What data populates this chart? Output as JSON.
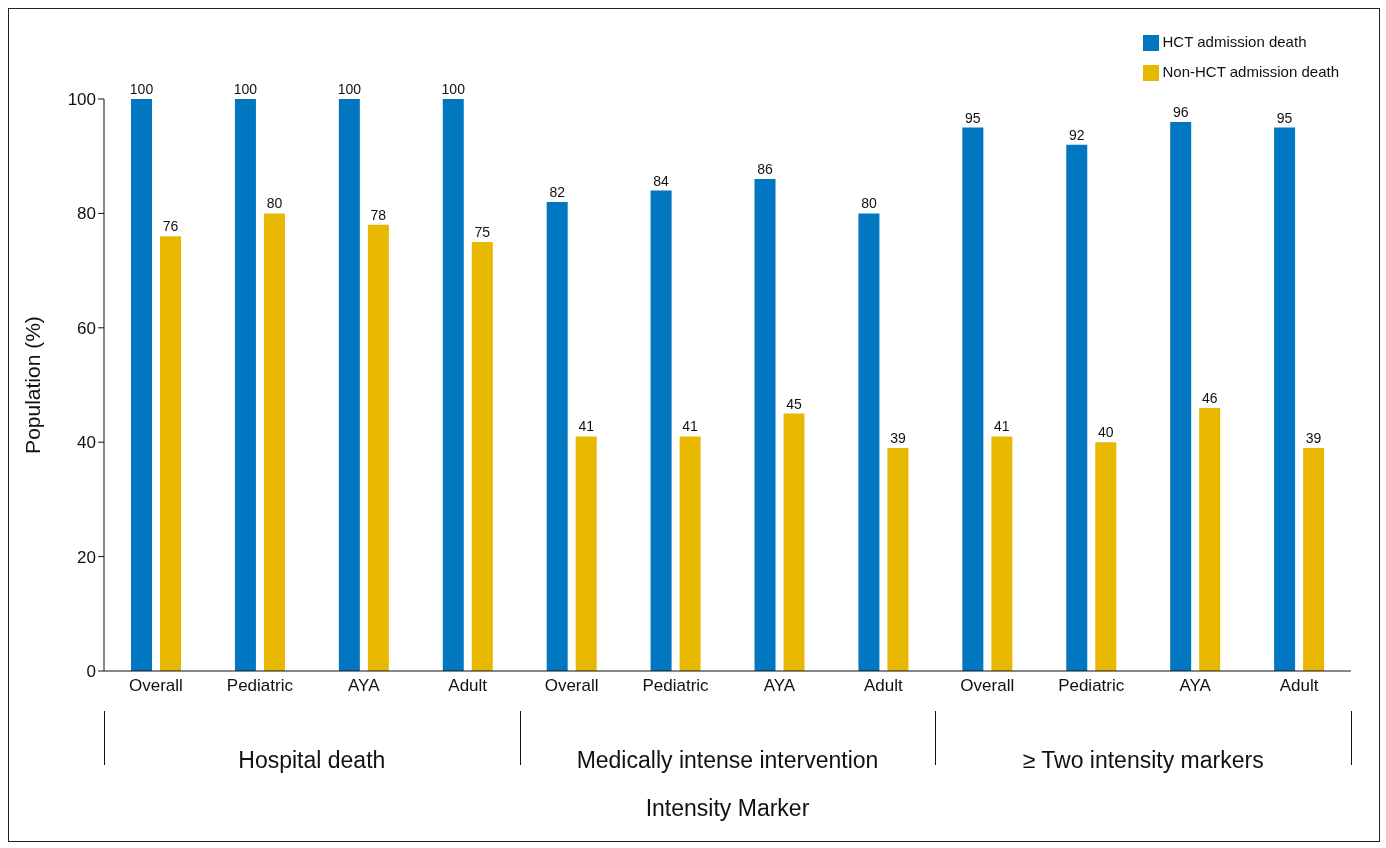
{
  "chart_data": {
    "type": "bar",
    "xlabel": "Intensity Marker",
    "ylabel": "Population (%)",
    "categories": [
      "Overall",
      "Pediatric",
      "AYA",
      "Adult",
      "Overall",
      "Pediatric",
      "AYA",
      "Adult",
      "Overall",
      "Pediatric",
      "AYA",
      "Adult"
    ],
    "series": [
      {
        "name": "HCT admission death",
        "color": "#0077c0",
        "values": [
          100,
          100,
          100,
          100,
          82,
          84,
          86,
          80,
          95,
          92,
          96,
          95
        ]
      },
      {
        "name": "Non-HCT admission death",
        "color": "#e8b800",
        "values": [
          76,
          80,
          78,
          75,
          41,
          41,
          45,
          39,
          41,
          40,
          46,
          39
        ]
      }
    ],
    "annotations": [
      "Hospital death",
      "Medically intense intervention",
      "≥ Two intensity markers"
    ],
    "ylim": [
      0,
      100
    ],
    "yticks": [
      0,
      20,
      40,
      60,
      80,
      100
    ],
    "grid": false,
    "legend": "top right",
    "data_labels": true
  }
}
